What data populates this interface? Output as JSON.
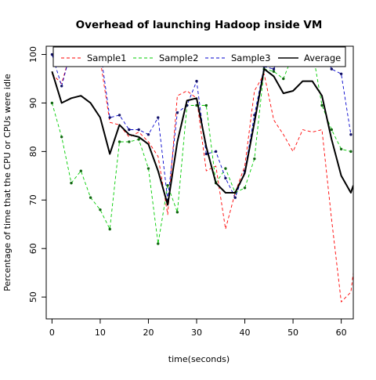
{
  "chart_data": {
    "type": "line",
    "title": "Overhead of launching Hadoop inside VM",
    "xlabel": "time(seconds)",
    "ylabel": "Percentage of time that the CPU or CPUs were idle",
    "xlim": [
      -1.2,
      62.5
    ],
    "ylim": [
      45.5,
      101.7
    ],
    "x_ticks": [
      0,
      10,
      20,
      30,
      40,
      50,
      60
    ],
    "y_ticks": [
      50,
      60,
      70,
      80,
      90,
      100
    ],
    "legend_position": "top",
    "series": [
      {
        "name": "Sample1",
        "color": "#ff0000",
        "dash": true,
        "points": false,
        "x": [
          0,
          2,
          4,
          6,
          8,
          10,
          12,
          14,
          16,
          18,
          20,
          22,
          24,
          26,
          28,
          30,
          32,
          34,
          36,
          38,
          40,
          42,
          44,
          46,
          48,
          50,
          52,
          54,
          56,
          58,
          60,
          62,
          62.5
        ],
        "y": [
          96,
          94,
          101,
          102,
          101,
          99,
          86,
          85.5,
          83,
          84,
          82,
          79,
          67,
          91.5,
          92.5,
          91,
          76,
          77,
          64,
          71.5,
          77,
          92.5,
          96,
          86.5,
          83.5,
          80,
          84.5,
          84,
          84.5,
          66,
          49,
          51,
          55
        ]
      },
      {
        "name": "Sample2",
        "color": "#00cc00",
        "dash": true,
        "points": true,
        "x": [
          0,
          2,
          4,
          6,
          8,
          10,
          12,
          14,
          16,
          18,
          20,
          22,
          24,
          26,
          28,
          30,
          32,
          34,
          36,
          38,
          40,
          42,
          44,
          46,
          48,
          50,
          52,
          54,
          56,
          58,
          60,
          62
        ],
        "y": [
          90,
          83,
          73.5,
          76,
          70.5,
          68,
          64,
          82,
          82,
          82.5,
          76.5,
          61,
          73,
          67.5,
          89.5,
          89.5,
          89.5,
          73.5,
          76.5,
          71.5,
          72.5,
          78.5,
          97,
          96.5,
          95,
          100,
          101,
          101,
          89.5,
          84.5,
          80.5,
          80
        ]
      },
      {
        "name": "Sample3",
        "color": "#0000cc",
        "dash": true,
        "points": true,
        "x": [
          0,
          2,
          4,
          6,
          8,
          10,
          12,
          14,
          16,
          18,
          20,
          22,
          24,
          26,
          28,
          30,
          32,
          34,
          36,
          38,
          40,
          42,
          44,
          46,
          48,
          50,
          52,
          54,
          56,
          58,
          60,
          62
        ],
        "y": [
          100,
          93.5,
          101,
          101.5,
          101,
          101,
          87,
          87.5,
          84.5,
          84.5,
          83.5,
          87,
          70,
          88,
          89.5,
          94.5,
          79.5,
          80,
          74.5,
          70.5,
          76,
          87.5,
          97.5,
          97,
          101,
          101,
          101,
          101,
          101,
          97,
          96,
          83.5
        ]
      },
      {
        "name": "Average",
        "color": "#000000",
        "dash": false,
        "points": false,
        "x": [
          0,
          2,
          4,
          6,
          8,
          10,
          12,
          14,
          16,
          18,
          20,
          22,
          24,
          26,
          28,
          30,
          32,
          34,
          36,
          38,
          40,
          42,
          44,
          46,
          48,
          50,
          52,
          54,
          56,
          58,
          60,
          62,
          62.5
        ],
        "y": [
          96.5,
          90,
          91,
          91.5,
          90,
          87,
          79.5,
          85.5,
          83.5,
          83,
          81.5,
          76,
          69,
          82,
          90.5,
          91,
          81,
          73.5,
          71.5,
          71.5,
          75.5,
          86,
          97,
          95.5,
          92,
          92.5,
          94.5,
          94.5,
          91.5,
          82.5,
          75,
          71.5,
          73
        ]
      }
    ]
  }
}
